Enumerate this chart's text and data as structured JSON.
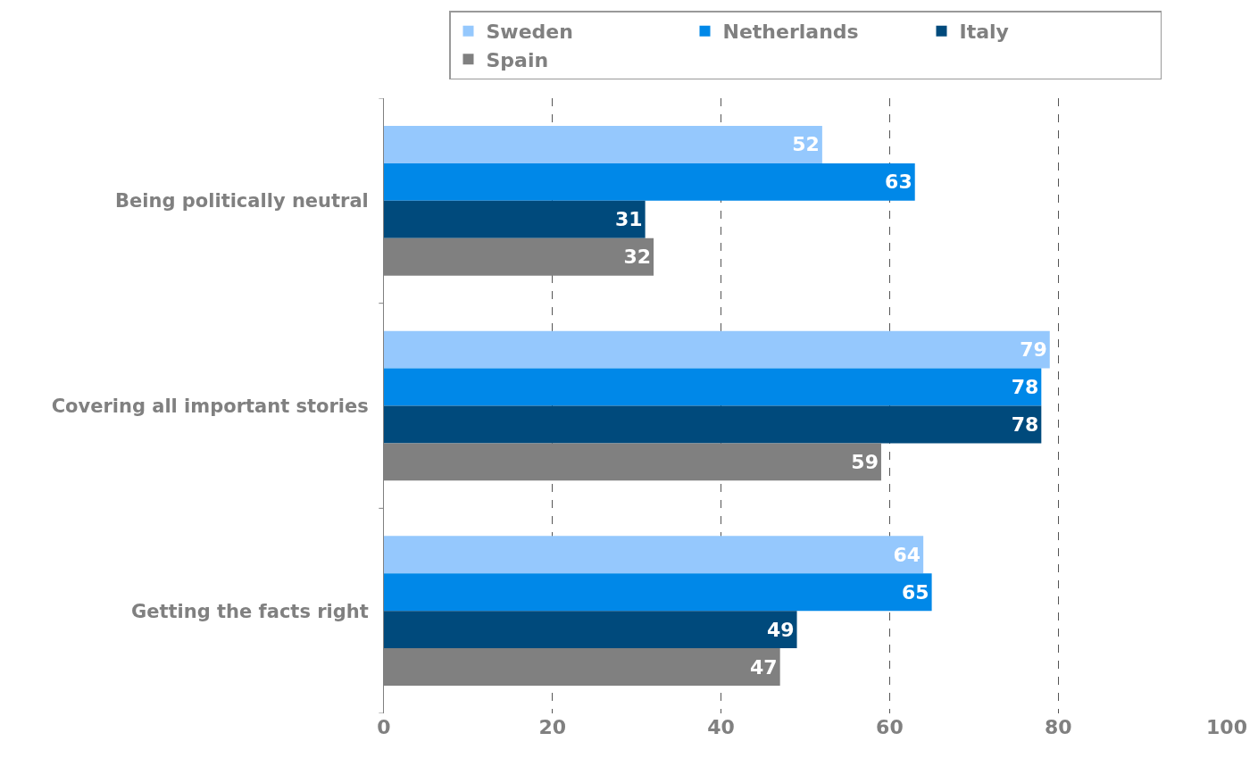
{
  "chart_data": {
    "type": "bar",
    "orientation": "horizontal",
    "categories": [
      "Being politically neutral",
      "Covering all important stories",
      "Getting the facts right"
    ],
    "series": [
      {
        "name": "Sweden",
        "color": "#95c8fd",
        "values": [
          52,
          79,
          64
        ]
      },
      {
        "name": "Netherlands",
        "color": "#0088e8",
        "values": [
          63,
          78,
          65
        ]
      },
      {
        "name": "Italy",
        "color": "#004a7c",
        "values": [
          31,
          78,
          49
        ]
      },
      {
        "name": "Spain",
        "color": "#808080",
        "values": [
          32,
          59,
          47
        ]
      }
    ],
    "xlim": [
      0,
      100
    ],
    "xticks": [
      0,
      20,
      40,
      60,
      80,
      100
    ],
    "grid": "x",
    "legend": "top",
    "data_labels": true
  }
}
